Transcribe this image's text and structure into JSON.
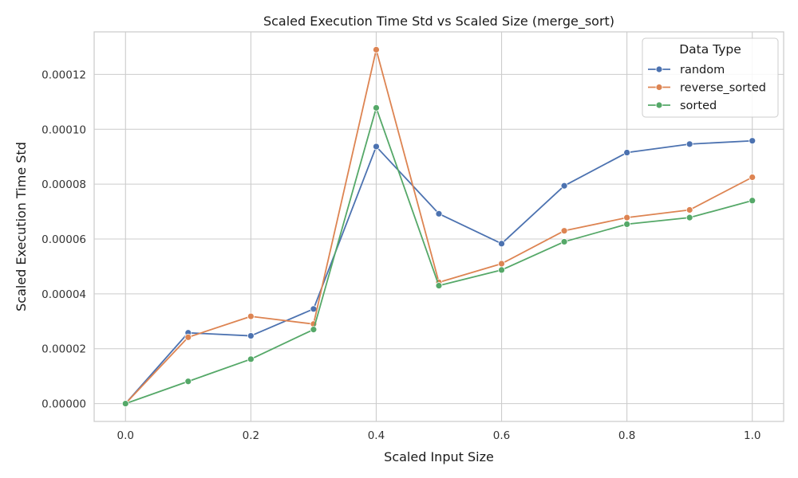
{
  "chart_data": {
    "type": "line",
    "title": "Scaled Execution Time Std vs Scaled Size (merge_sort)",
    "xlabel": "Scaled Input Size",
    "ylabel": "Scaled Execution Time Std",
    "xlim": [
      -0.05,
      1.05
    ],
    "ylim": [
      -6.5e-06,
      0.0001355
    ],
    "x_ticks": [
      0.0,
      0.2,
      0.4,
      0.6,
      0.8,
      1.0
    ],
    "x_tick_labels": [
      "0.0",
      "0.2",
      "0.4",
      "0.6",
      "0.8",
      "1.0"
    ],
    "y_ticks": [
      0,
      2e-05,
      4e-05,
      6e-05,
      8e-05,
      0.0001,
      0.00012
    ],
    "y_tick_labels": [
      "0.00000",
      "0.00002",
      "0.00004",
      "0.00006",
      "0.00008",
      "0.00010",
      "0.00012"
    ],
    "grid": true,
    "legend_title": "Data Type",
    "legend_placement": "top-right",
    "x": [
      0.0,
      0.1,
      0.2,
      0.3,
      0.4,
      0.5,
      0.6,
      0.7,
      0.8,
      0.9,
      1.0
    ],
    "series": [
      {
        "name": "random",
        "color": "#4c72b0",
        "values": [
          0.0,
          2.58e-05,
          2.47e-05,
          3.45e-05,
          9.37e-05,
          6.92e-05,
          5.83e-05,
          7.94e-05,
          9.15e-05,
          9.46e-05,
          9.58e-05
        ]
      },
      {
        "name": "reverse_sorted",
        "color": "#dd8452",
        "values": [
          0.0,
          2.42e-05,
          3.18e-05,
          2.9e-05,
          0.000129,
          4.42e-05,
          5.1e-05,
          6.3e-05,
          6.78e-05,
          7.06e-05,
          8.25e-05
        ]
      },
      {
        "name": "sorted",
        "color": "#55a868",
        "values": [
          0.0,
          8.1e-06,
          1.62e-05,
          2.7e-05,
          0.0001078,
          4.3e-05,
          4.87e-05,
          5.9e-05,
          6.54e-05,
          6.78e-05,
          7.4e-05
        ]
      }
    ]
  }
}
